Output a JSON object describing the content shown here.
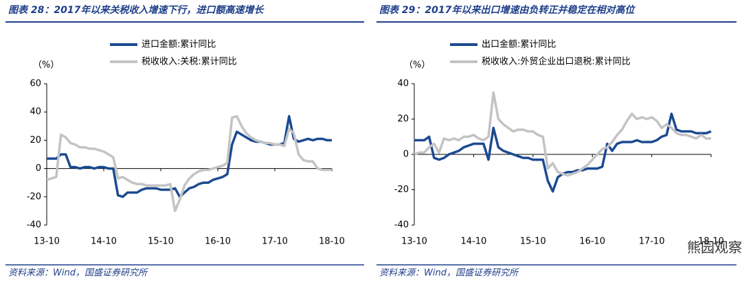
{
  "chart_data": [
    {
      "type": "line",
      "title": "图表 28：2017年以来关税收入增速下行，进口额高速增长",
      "source": "资料来源：Wind，国盛证券研究所",
      "y_label": "（%）",
      "categories": [
        "13-10",
        null,
        null,
        null,
        null,
        null,
        null,
        null,
        null,
        null,
        null,
        null,
        "14-10",
        null,
        null,
        null,
        null,
        null,
        null,
        null,
        null,
        null,
        null,
        null,
        "15-10",
        null,
        null,
        null,
        null,
        null,
        null,
        null,
        null,
        null,
        null,
        null,
        "16-10",
        null,
        null,
        null,
        null,
        null,
        null,
        null,
        null,
        null,
        null,
        null,
        "17-10",
        null,
        null,
        null,
        null,
        null,
        null,
        null,
        null,
        null,
        null,
        null,
        "18-10"
      ],
      "series": [
        {
          "name": "进口金额:累计同比",
          "color": "#1c4a92",
          "values": [
            7,
            7,
            7,
            10,
            10,
            1,
            1,
            0,
            1,
            1,
            0,
            1,
            1,
            0,
            0,
            -19,
            -20,
            -17,
            -17,
            -17,
            -15,
            -14,
            -14,
            -14,
            -15,
            -15,
            -15,
            -14,
            -20,
            -17,
            -14,
            -13,
            -11,
            -10,
            -10,
            -8,
            -7,
            -6,
            -4,
            17,
            26,
            24,
            22,
            20,
            19,
            19,
            18,
            17,
            17,
            17,
            18,
            37,
            21,
            19,
            20,
            21,
            20,
            21,
            21,
            20,
            20
          ]
        },
        {
          "name": "税收收入:关税:累计同比",
          "color": "#c3c3c3",
          "values": [
            -8,
            -7,
            -6,
            24,
            22,
            18,
            17,
            15,
            15,
            14,
            14,
            13,
            12,
            10,
            8,
            -7,
            -6,
            -8,
            -10,
            -11,
            -11,
            -12,
            -12,
            -12,
            -12,
            -12,
            -11,
            -30,
            -22,
            -12,
            -7,
            -4,
            -2,
            -1,
            -1,
            0,
            1,
            2,
            4,
            36,
            37,
            30,
            25,
            22,
            20,
            19,
            18,
            18,
            17,
            17,
            16,
            28,
            25,
            10,
            6,
            5,
            5,
            0,
            -1,
            -1,
            -1
          ]
        }
      ],
      "ylim": [
        -40,
        60
      ],
      "yticks": [
        -40,
        -20,
        0,
        20,
        40,
        60
      ],
      "legend": "upper left"
    },
    {
      "type": "line",
      "title": "图表 29：2017年以来出口增速由负转正并稳定在相对高位",
      "source": "资料来源：Wind，国盛证券研究所",
      "y_label": "（%）",
      "categories": [
        "13-10",
        null,
        null,
        null,
        null,
        null,
        null,
        null,
        null,
        null,
        null,
        null,
        "14-10",
        null,
        null,
        null,
        null,
        null,
        null,
        null,
        null,
        null,
        null,
        null,
        "15-10",
        null,
        null,
        null,
        null,
        null,
        null,
        null,
        null,
        null,
        null,
        null,
        "16-10",
        null,
        null,
        null,
        null,
        null,
        null,
        null,
        null,
        null,
        null,
        null,
        "17-10",
        null,
        null,
        null,
        null,
        null,
        null,
        null,
        null,
        null,
        null,
        null,
        "18-10"
      ],
      "series": [
        {
          "name": "出口金额:累计同比",
          "color": "#1c4a92",
          "values": [
            8,
            8,
            8,
            10,
            -2,
            -3,
            -2,
            0,
            1,
            2,
            4,
            5,
            6,
            6,
            6,
            -3,
            15,
            4,
            2,
            1,
            0,
            -1,
            -2,
            -2,
            -3,
            -3,
            -3,
            -15,
            -21,
            -13,
            -11,
            -10,
            -10,
            -9,
            -9,
            -8,
            -8,
            -8,
            -7,
            6,
            2,
            6,
            7,
            7,
            7,
            8,
            7,
            7,
            7,
            8,
            10,
            11,
            23,
            14,
            13,
            13,
            13,
            12,
            12,
            12,
            13
          ]
        },
        {
          "name": "税收收入:外贸企业出口退税:累计同比",
          "color": "#c3c3c3",
          "values": [
            0,
            1,
            1,
            4,
            6,
            1,
            9,
            8,
            9,
            8,
            10,
            10,
            11,
            9,
            8,
            10,
            35,
            20,
            17,
            15,
            13,
            14,
            14,
            13,
            13,
            11,
            10,
            -8,
            -5,
            -10,
            -11,
            -12,
            -11,
            -10,
            -8,
            -6,
            -3,
            0,
            3,
            4,
            7,
            11,
            14,
            19,
            23,
            20,
            21,
            20,
            21,
            19,
            15,
            17,
            15,
            12,
            11,
            11,
            10,
            9,
            11,
            9,
            9
          ]
        }
      ],
      "ylim": [
        -40,
        40
      ],
      "yticks": [
        -40,
        -20,
        0,
        20,
        40
      ],
      "legend": "upper left"
    }
  ],
  "watermark": "熊园观察"
}
